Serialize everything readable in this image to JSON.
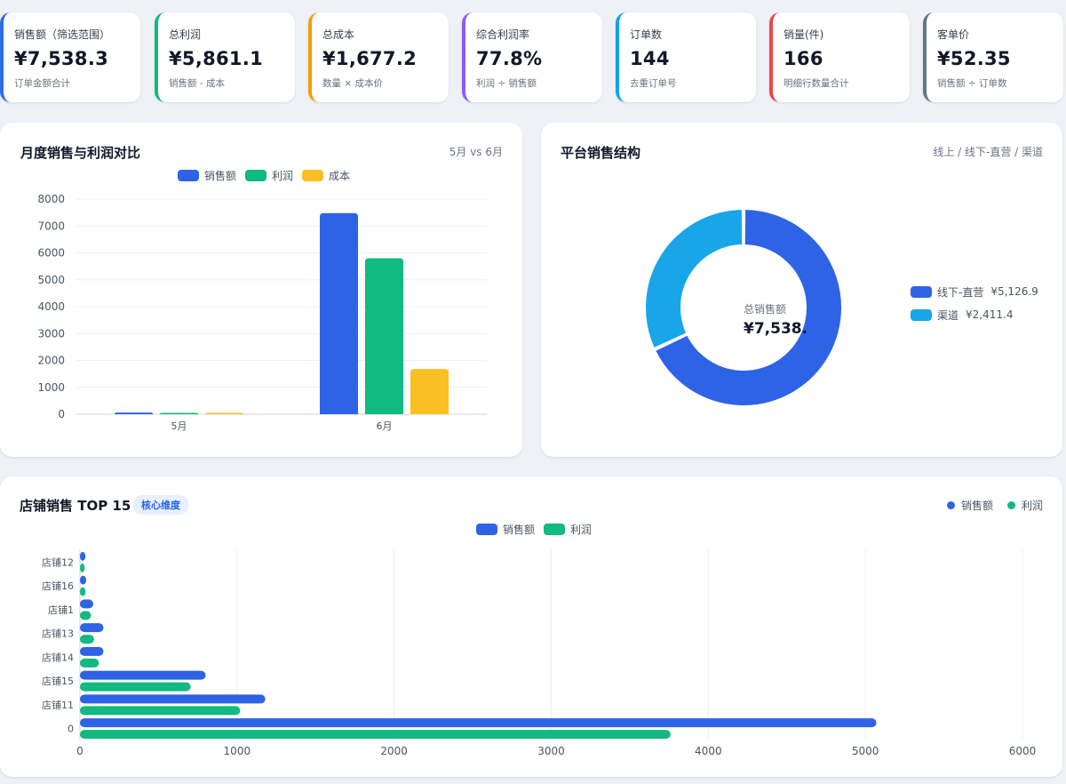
{
  "kpis": [
    {
      "label": "销售额（筛选范围）",
      "value": "¥7,538.3",
      "sub": "订单金额合计",
      "color": "#2f6fe0"
    },
    {
      "label": "总利润",
      "value": "¥5,861.1",
      "sub": "销售额 - 成本",
      "color": "#10b981"
    },
    {
      "label": "总成本",
      "value": "¥1,677.2",
      "sub": "数量 × 成本价",
      "color": "#f59e0b"
    },
    {
      "label": "综合利润率",
      "value": "77.8%",
      "sub": "利润 ÷ 销售额",
      "color": "#8b5cf6"
    },
    {
      "label": "订单数",
      "value": "144",
      "sub": "去重订单号",
      "color": "#0ea5e9"
    },
    {
      "label": "销量(件)",
      "value": "166",
      "sub": "明细行数量合计",
      "color": "#ef4444"
    },
    {
      "label": "客单价",
      "value": "¥52.35",
      "sub": "销售额 ÷ 订单数",
      "color": "#64748b"
    }
  ],
  "monthly": {
    "title": "月度销售与利润对比",
    "hint": "5月 vs 6月",
    "legend": [
      "销售额",
      "利润",
      "成本"
    ]
  },
  "platform": {
    "title": "平台销售结构",
    "hint": "线上 / 线下-直营 / 渠道",
    "center_label": "总销售额",
    "center_value": "¥7,538.3",
    "legend": [
      {
        "name": "线下-直营",
        "value": "¥5,126.9"
      },
      {
        "name": "渠道",
        "value": "¥2,411.4"
      }
    ]
  },
  "stores": {
    "title": "店铺销售 TOP 15",
    "badge": "核心维度",
    "top_legend": [
      "销售额",
      "利润"
    ],
    "inner_legend": [
      "销售额",
      "利润"
    ]
  },
  "colors": {
    "sales": "#2f63e6",
    "profit": "#12b981",
    "cost": "#fbbf24",
    "online": "#2f63e6",
    "channel": "#18a6e8"
  },
  "chart_data": [
    {
      "type": "bar",
      "categories": [
        "5月",
        "6月"
      ],
      "series": [
        {
          "name": "销售额",
          "values": [
            60,
            7480
          ]
        },
        {
          "name": "利润",
          "values": [
            50,
            5800
          ]
        },
        {
          "name": "成本",
          "values": [
            10,
            1680
          ]
        }
      ],
      "ylim": [
        0,
        8000
      ],
      "yticks": [
        0,
        1000,
        2000,
        3000,
        4000,
        5000,
        6000,
        7000,
        8000
      ],
      "legend": "top",
      "grid": true
    },
    {
      "type": "pie",
      "labels": [
        "线下-直营",
        "渠道"
      ],
      "values": [
        5126.9,
        2411.4
      ],
      "donut": true
    },
    {
      "type": "bar",
      "orientation": "horizontal",
      "categories": [
        "店铺12",
        "店铺16",
        "店铺1",
        "店铺13",
        "店铺14",
        "店铺15",
        "店铺11",
        "0"
      ],
      "series": [
        {
          "name": "销售额",
          "values": [
            35,
            40,
            85,
            150,
            150,
            800,
            1180,
            5070
          ]
        },
        {
          "name": "利润",
          "values": [
            30,
            35,
            70,
            90,
            120,
            705,
            1020,
            3760
          ]
        }
      ],
      "xlim": [
        0,
        6000
      ],
      "xticks": [
        0,
        1000,
        2000,
        3000,
        4000,
        5000,
        6000
      ],
      "legend": "top",
      "grid": true
    }
  ]
}
